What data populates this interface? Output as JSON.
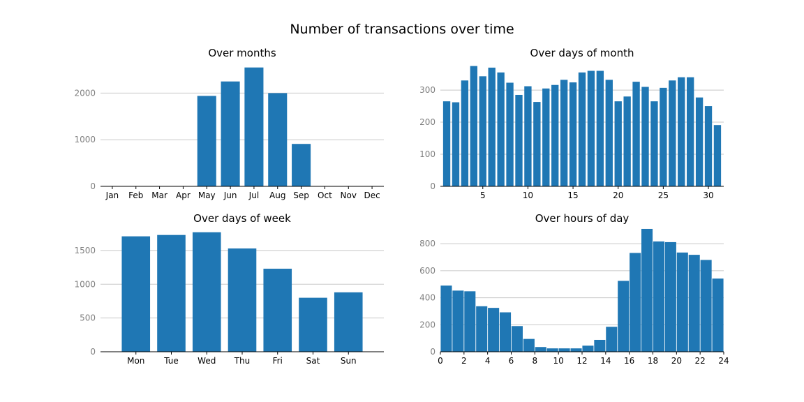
{
  "title": "Number of transactions over time",
  "bar_color": "#1f77b4",
  "chart_data": [
    {
      "type": "bar",
      "title": "Over months",
      "categories": [
        "Jan",
        "Feb",
        "Mar",
        "Apr",
        "May",
        "Jun",
        "Jul",
        "Aug",
        "Sep",
        "Oct",
        "Nov",
        "Dec"
      ],
      "values": [
        0,
        0,
        0,
        0,
        1940,
        2250,
        2550,
        2000,
        910,
        0,
        0,
        0
      ],
      "ylim": [
        0,
        2650
      ],
      "yticks": [
        0,
        1000,
        2000
      ],
      "grid": "y"
    },
    {
      "type": "bar",
      "title": "Over days of month",
      "x": [
        1,
        2,
        3,
        4,
        5,
        6,
        7,
        8,
        9,
        10,
        11,
        12,
        13,
        14,
        15,
        16,
        17,
        18,
        19,
        20,
        21,
        22,
        23,
        24,
        25,
        26,
        27,
        28,
        29,
        30,
        31
      ],
      "values": [
        265,
        262,
        330,
        375,
        343,
        370,
        355,
        323,
        285,
        312,
        263,
        305,
        316,
        332,
        324,
        355,
        360,
        360,
        332,
        265,
        280,
        326,
        310,
        265,
        307,
        330,
        340,
        340,
        277,
        250,
        191
      ],
      "xlim": [
        0.3,
        31.7
      ],
      "xticks": [
        5,
        10,
        15,
        20,
        25,
        30
      ],
      "ylim": [
        0,
        385
      ],
      "yticks": [
        0,
        100,
        200,
        300
      ],
      "grid": "y"
    },
    {
      "type": "bar",
      "title": "Over days of week",
      "categories": [
        "Mon",
        "Tue",
        "Wed",
        "Thu",
        "Fri",
        "Sat",
        "Sun"
      ],
      "values": [
        1710,
        1730,
        1770,
        1530,
        1230,
        800,
        880
      ],
      "ylim": [
        0,
        1830
      ],
      "yticks": [
        0,
        500,
        1000,
        1500
      ],
      "grid": "y"
    },
    {
      "type": "bar",
      "title": "Over hours of day",
      "x": [
        0.5,
        1.5,
        2.5,
        3.5,
        4.5,
        5.5,
        6.5,
        7.5,
        8.5,
        9.5,
        10.5,
        11.5,
        12.5,
        13.5,
        14.5,
        15.5,
        16.5,
        17.5,
        18.5,
        19.5,
        20.5,
        21.5,
        22.5,
        23.5
      ],
      "values": [
        490,
        453,
        448,
        337,
        325,
        292,
        190,
        95,
        35,
        25,
        25,
        25,
        45,
        88,
        185,
        525,
        732,
        910,
        817,
        812,
        735,
        718,
        680,
        542
      ],
      "xlim": [
        0,
        24
      ],
      "xticks": [
        0,
        2,
        4,
        6,
        8,
        10,
        12,
        14,
        16,
        18,
        20,
        22,
        24
      ],
      "ylim": [
        0,
        915
      ],
      "yticks": [
        0,
        200,
        400,
        600,
        800
      ],
      "grid": "y"
    }
  ]
}
